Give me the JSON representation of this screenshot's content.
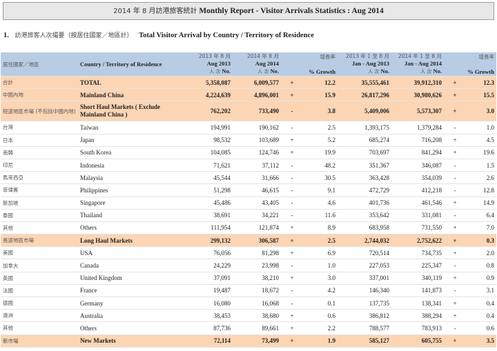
{
  "header": {
    "title_zh": "2014 年 8 月訪港旅客統計",
    "title_en": "Monthly Report - Visitor Arrivals Statistics : Aug 2014"
  },
  "section": {
    "number": "1.",
    "title_zh": "訪港旅客人次撮要（按居住國家／地區計）",
    "title_en": "Total Visitor Arrival by Country / Territory of Residence"
  },
  "table": {
    "headers": {
      "zh_region": "居住國家／地區",
      "en_region": "Country / Territory of Residence",
      "aug2013_zh": "2013 年 8 月",
      "aug2013_en": "Aug 2013",
      "aug2014_zh": "2014 年 8 月",
      "aug2014_en": "Aug 2014",
      "unit_zh": "人 次",
      "unit_en": "No.",
      "growth_zh": "增長率",
      "growth_en": "% Growth",
      "ytd2013_zh": "2013 年 1 至 8 月",
      "ytd2013_en": "Jan - Aug 2013",
      "ytd2014_zh": "2014 年 1 至 8 月",
      "ytd2014_en": "Jan - Aug 2014"
    },
    "rows": [
      {
        "zh": "合計",
        "en": "TOTAL",
        "m13": "5,358,087",
        "m14": "6,009,577",
        "s1": "+",
        "g1": "12.2",
        "y13": "35,555,461",
        "y14": "39,912,310",
        "s2": "+",
        "g2": "12.3",
        "highlight": true
      },
      {
        "zh": "中國內地",
        "en": "Mainland China",
        "m13": "4,224,639",
        "m14": "4,896,001",
        "s1": "+",
        "g1": "15.9",
        "y13": "26,817,296",
        "y14": "30,980,626",
        "s2": "+",
        "g2": "15.5",
        "highlight": true
      },
      {
        "zh": "短途地區市場 (不包括中國內地)",
        "en": "Short Haul Markets ( Exclude Mainland China )",
        "m13": "762,202",
        "m14": "733,490",
        "s1": "-",
        "g1": "3.8",
        "y13": "5,409,006",
        "y14": "5,573,307",
        "s2": "+",
        "g2": "3.0",
        "highlight": true,
        "tall": true
      },
      {
        "zh": "台灣",
        "en": "Taiwan",
        "m13": "194,991",
        "m14": "190,162",
        "s1": "-",
        "g1": "2.5",
        "y13": "1,393,175",
        "y14": "1,379,284",
        "s2": "-",
        "g2": "1.0"
      },
      {
        "zh": "日本",
        "en": "Japan",
        "m13": "98,532",
        "m14": "103,689",
        "s1": "+",
        "g1": "5.2",
        "y13": "685,274",
        "y14": "716,208",
        "s2": "+",
        "g2": "4.5"
      },
      {
        "zh": "南韓",
        "en": "South Korea",
        "m13": "104,085",
        "m14": "124,746",
        "s1": "+",
        "g1": "19.9",
        "y13": "703,697",
        "y14": "841,294",
        "s2": "+",
        "g2": "19.6"
      },
      {
        "zh": "印尼",
        "en": "Indonesia",
        "m13": "71,621",
        "m14": "37,112",
        "s1": "-",
        "g1": "48.2",
        "y13": "351,367",
        "y14": "346,087",
        "s2": "-",
        "g2": "1.5"
      },
      {
        "zh": "馬來西亞",
        "en": "Malaysia",
        "m13": "45,544",
        "m14": "31,666",
        "s1": "-",
        "g1": "30.5",
        "y13": "363,428",
        "y14": "354,039",
        "s2": "-",
        "g2": "2.6"
      },
      {
        "zh": "菲律賓",
        "en": "Philippines",
        "m13": "51,298",
        "m14": "46,615",
        "s1": "-",
        "g1": "9.1",
        "y13": "472,729",
        "y14": "412,218",
        "s2": "-",
        "g2": "12.8"
      },
      {
        "zh": "新加坡",
        "en": "Singapore",
        "m13": "45,486",
        "m14": "43,405",
        "s1": "-",
        "g1": "4.6",
        "y13": "401,736",
        "y14": "461,546",
        "s2": "+",
        "g2": "14.9"
      },
      {
        "zh": "泰國",
        "en": "Thailand",
        "m13": "38,691",
        "m14": "34,221",
        "s1": "-",
        "g1": "11.6",
        "y13": "353,642",
        "y14": "331,081",
        "s2": "-",
        "g2": "6.4"
      },
      {
        "zh": "其他",
        "en": "Others",
        "m13": "111,954",
        "m14": "121,874",
        "s1": "+",
        "g1": "8.9",
        "y13": "683,958",
        "y14": "731,550",
        "s2": "+",
        "g2": "7.0"
      },
      {
        "zh": "長途地區市場",
        "en": "Long Haul Markets",
        "m13": "299,132",
        "m14": "306,587",
        "s1": "+",
        "g1": "2.5",
        "y13": "2,744,032",
        "y14": "2,752,622",
        "s2": "+",
        "g2": "0.3",
        "highlight": true
      },
      {
        "zh": "美國",
        "en": "USA",
        "m13": "76,056",
        "m14": "81,298",
        "s1": "+",
        "g1": "6.9",
        "y13": "720,514",
        "y14": "734,735",
        "s2": "+",
        "g2": "2.0"
      },
      {
        "zh": "加拿大",
        "en": "Canada",
        "m13": "24,229",
        "m14": "23,998",
        "s1": "-",
        "g1": "1.0",
        "y13": "227,053",
        "y14": "225,347",
        "s2": "-",
        "g2": "0.8"
      },
      {
        "zh": "英國",
        "en": "United Kingdom",
        "m13": "37,091",
        "m14": "38,210",
        "s1": "+",
        "g1": "3.0",
        "y13": "337,001",
        "y14": "340,119",
        "s2": "+",
        "g2": "0.9"
      },
      {
        "zh": "法國",
        "en": "France",
        "m13": "19,487",
        "m14": "18,672",
        "s1": "-",
        "g1": "4.2",
        "y13": "146,340",
        "y14": "141,873",
        "s2": "-",
        "g2": "3.1"
      },
      {
        "zh": "德國",
        "en": "Germany",
        "m13": "16,080",
        "m14": "16,068",
        "s1": "-",
        "g1": "0.1",
        "y13": "137,735",
        "y14": "138,341",
        "s2": "+",
        "g2": "0.4"
      },
      {
        "zh": "澳洲",
        "en": "Australia",
        "m13": "38,453",
        "m14": "38,680",
        "s1": "+",
        "g1": "0.6",
        "y13": "386,812",
        "y14": "388,294",
        "s2": "+",
        "g2": "0.4"
      },
      {
        "zh": "其他",
        "en": "Others",
        "m13": "87,736",
        "m14": "89,661",
        "s1": "+",
        "g1": "2.2",
        "y13": "788,577",
        "y14": "783,913",
        "s2": "-",
        "g2": "0.6"
      },
      {
        "zh": "新市場",
        "en": "New Markets",
        "m13": "72,114",
        "m14": "73,499",
        "s1": "+",
        "g1": "1.9",
        "y13": "585,127",
        "y14": "605,755",
        "s2": "+",
        "g2": "3.5",
        "highlight": true
      }
    ]
  }
}
